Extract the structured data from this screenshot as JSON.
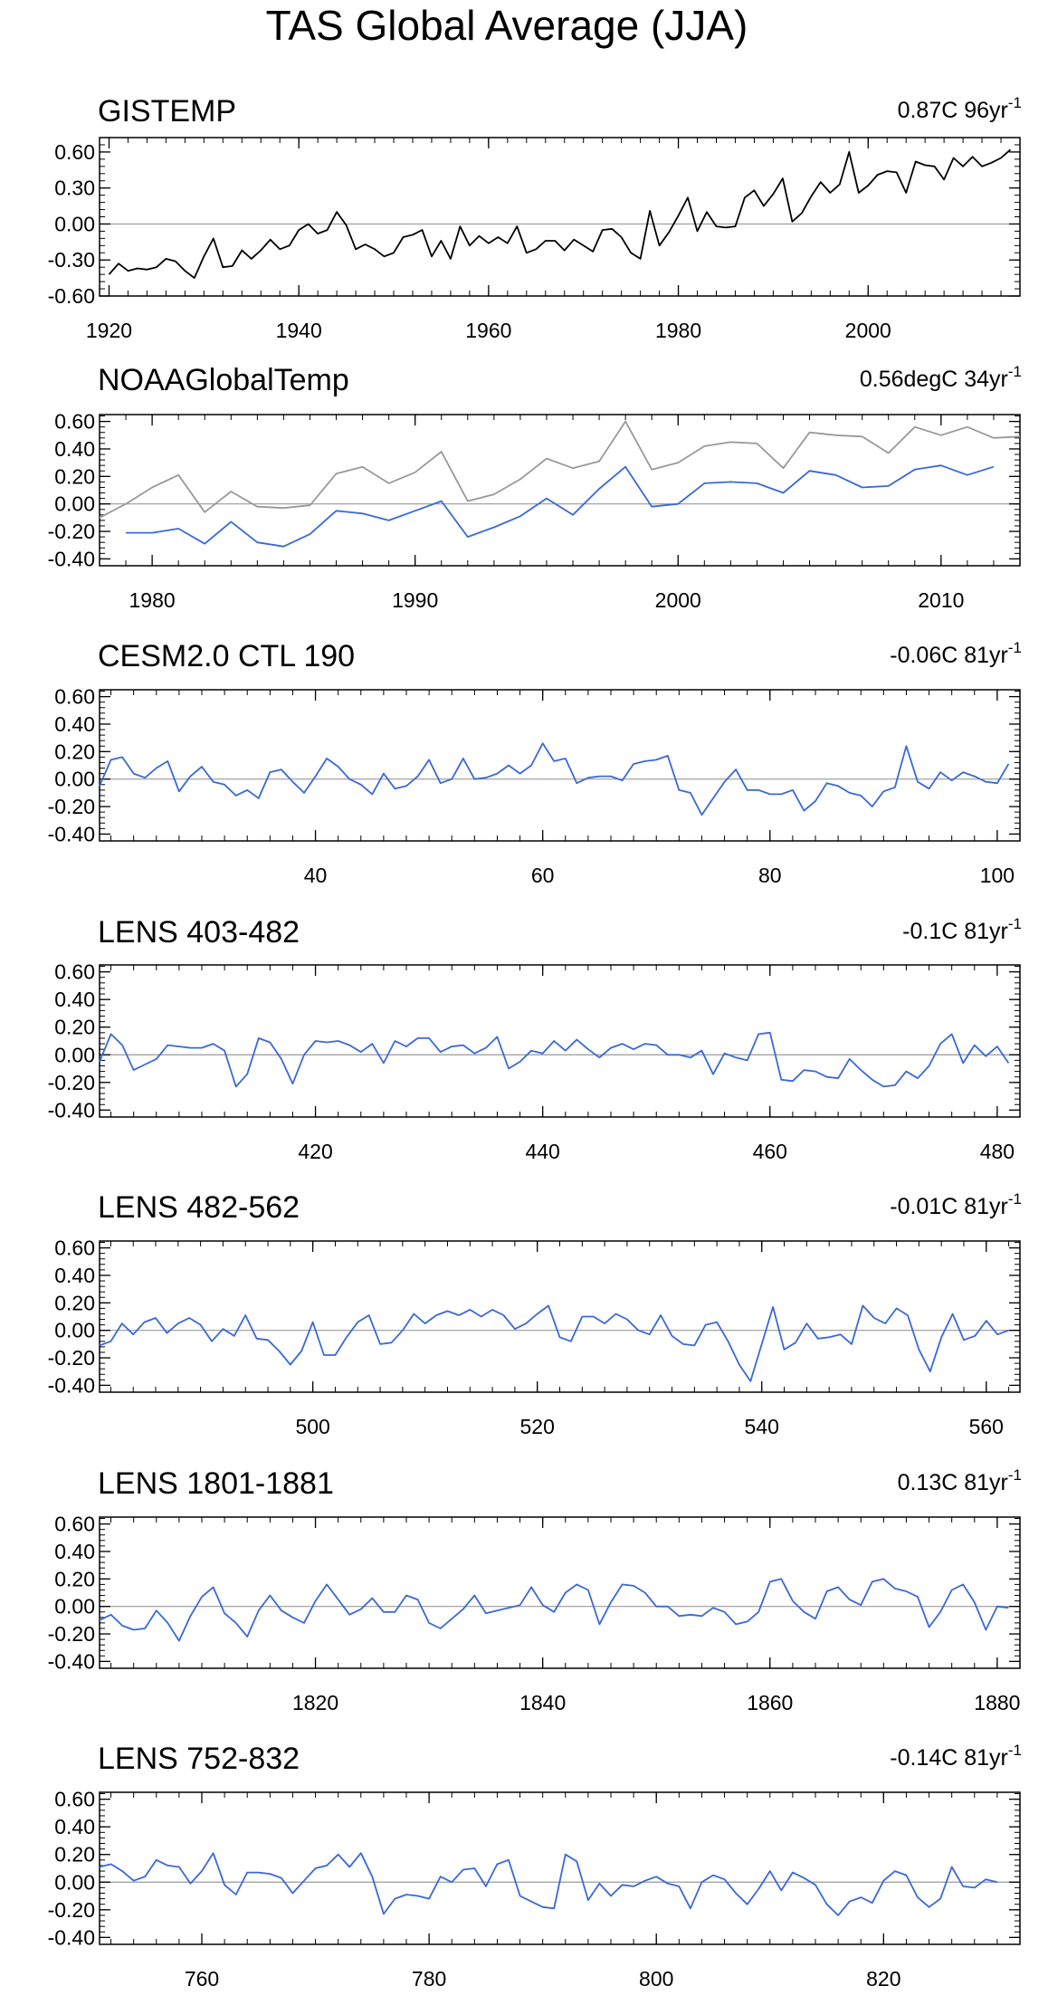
{
  "title": "TAS Global Average (JJA)",
  "chart_data": [
    {
      "type": "line",
      "panel_title": "GISTEMP",
      "trend_label": "0.87C 96yr",
      "trend_exp": "-1",
      "xlim": [
        1919,
        2016
      ],
      "ylim": [
        -0.6,
        0.72
      ],
      "yticks": [
        -0.6,
        -0.3,
        0.0,
        0.3,
        0.6
      ],
      "ytick_labels": [
        "-0.60",
        "-0.30",
        "0.00",
        "0.30",
        "0.60"
      ],
      "xticks": [
        1920,
        1940,
        1960,
        1980,
        2000
      ],
      "xtick_labels": [
        "1920",
        "1940",
        "1960",
        "1980",
        "2000"
      ],
      "zero_line": true,
      "series": [
        {
          "color": "#000000",
          "x_start": 1920,
          "values": [
            -0.42,
            -0.33,
            -0.39,
            -0.37,
            -0.38,
            -0.36,
            -0.29,
            -0.31,
            -0.39,
            -0.45,
            -0.27,
            -0.12,
            -0.36,
            -0.35,
            -0.22,
            -0.29,
            -0.22,
            -0.13,
            -0.21,
            -0.18,
            -0.05,
            0.0,
            -0.08,
            -0.05,
            0.1,
            -0.01,
            -0.21,
            -0.17,
            -0.21,
            -0.27,
            -0.24,
            -0.11,
            -0.09,
            -0.05,
            -0.27,
            -0.14,
            -0.29,
            -0.02,
            -0.18,
            -0.1,
            -0.16,
            -0.11,
            -0.16,
            -0.02,
            -0.24,
            -0.21,
            -0.14,
            -0.14,
            -0.22,
            -0.13,
            -0.18,
            -0.23,
            -0.05,
            -0.04,
            -0.11,
            -0.24,
            -0.29,
            0.11,
            -0.18,
            -0.07,
            0.07,
            0.22,
            -0.06,
            0.1,
            -0.02,
            -0.03,
            -0.02,
            0.22,
            0.28,
            0.15,
            0.25,
            0.38,
            0.02,
            0.09,
            0.23,
            0.35,
            0.26,
            0.33,
            0.6,
            0.26,
            0.32,
            0.41,
            0.44,
            0.43,
            0.26,
            0.52,
            0.49,
            0.48,
            0.37,
            0.55,
            0.48,
            0.56,
            0.48,
            0.51,
            0.55,
            0.62
          ]
        }
      ]
    },
    {
      "type": "line",
      "panel_title": "NOAAGlobalTemp",
      "trend_label": "0.56degC 34yr",
      "trend_exp": "-1",
      "xlim": [
        1978,
        2013
      ],
      "ylim": [
        -0.45,
        0.65
      ],
      "yticks": [
        -0.4,
        -0.2,
        0.0,
        0.2,
        0.4,
        0.6
      ],
      "ytick_labels": [
        "-0.40",
        "-0.20",
        "0.00",
        "0.20",
        "0.40",
        "0.60"
      ],
      "xticks": [
        1980,
        1990,
        2000,
        2010
      ],
      "xtick_labels": [
        "1980",
        "1990",
        "2000",
        "2010"
      ],
      "zero_line": true,
      "series": [
        {
          "color": "#999999",
          "x_start": 1978,
          "values": [
            -0.1,
            0.0,
            0.12,
            0.21,
            -0.06,
            0.09,
            -0.02,
            -0.03,
            -0.01,
            0.22,
            0.27,
            0.15,
            0.23,
            0.38,
            0.02,
            0.07,
            0.18,
            0.33,
            0.26,
            0.31,
            0.6,
            0.25,
            0.3,
            0.42,
            0.45,
            0.44,
            0.26,
            0.52,
            0.5,
            0.49,
            0.37,
            0.56,
            0.5,
            0.56,
            0.48,
            0.49
          ]
        },
        {
          "color": "#3a68d8",
          "x_start": 1979,
          "values": [
            -0.21,
            -0.21,
            -0.18,
            -0.29,
            -0.13,
            -0.28,
            -0.31,
            -0.22,
            -0.05,
            -0.07,
            -0.12,
            -0.05,
            0.02,
            -0.24,
            -0.17,
            -0.09,
            0.04,
            -0.08,
            0.11,
            0.27,
            -0.02,
            0.0,
            0.15,
            0.16,
            0.15,
            0.08,
            0.24,
            0.21,
            0.12,
            0.13,
            0.25,
            0.28,
            0.21,
            0.27
          ]
        }
      ]
    },
    {
      "type": "line",
      "panel_title": "CESM2.0 CTL 190",
      "trend_label": "-0.06C 81yr",
      "trend_exp": "-1",
      "xlim": [
        21,
        102
      ],
      "ylim": [
        -0.45,
        0.65
      ],
      "yticks": [
        -0.4,
        -0.2,
        0.0,
        0.2,
        0.4,
        0.6
      ],
      "ytick_labels": [
        "-0.40",
        "-0.20",
        "0.00",
        "0.20",
        "0.40",
        "0.60"
      ],
      "xticks": [
        40,
        60,
        80,
        100
      ],
      "xtick_labels": [
        "40",
        "60",
        "80",
        "100"
      ],
      "zero_line": true,
      "series": [
        {
          "color": "#3a68d8",
          "x_start": 21,
          "values": [
            -0.05,
            0.14,
            0.16,
            0.04,
            0.01,
            0.08,
            0.13,
            -0.09,
            0.02,
            0.09,
            -0.02,
            -0.04,
            -0.12,
            -0.08,
            -0.14,
            0.05,
            0.07,
            -0.02,
            -0.1,
            0.02,
            0.15,
            0.09,
            0.0,
            -0.04,
            -0.11,
            0.04,
            -0.07,
            -0.05,
            0.02,
            0.14,
            -0.03,
            0.0,
            0.15,
            0.0,
            0.01,
            0.04,
            0.1,
            0.04,
            0.1,
            0.26,
            0.13,
            0.15,
            -0.03,
            0.01,
            0.02,
            0.02,
            -0.01,
            0.11,
            0.13,
            0.14,
            0.17,
            -0.08,
            -0.1,
            -0.26,
            -0.14,
            -0.02,
            0.07,
            -0.08,
            -0.08,
            -0.11,
            -0.11,
            -0.08,
            -0.23,
            -0.16,
            -0.03,
            -0.05,
            -0.1,
            -0.12,
            -0.2,
            -0.09,
            -0.06,
            0.24,
            -0.02,
            -0.07,
            0.05,
            -0.01,
            0.05,
            0.02,
            -0.02,
            -0.03,
            0.11
          ]
        }
      ]
    },
    {
      "type": "line",
      "panel_title": "LENS 403-482",
      "trend_label": "-0.1C 81yr",
      "trend_exp": "-1",
      "xlim": [
        401,
        482
      ],
      "ylim": [
        -0.45,
        0.65
      ],
      "yticks": [
        -0.4,
        -0.2,
        0.0,
        0.2,
        0.4,
        0.6
      ],
      "ytick_labels": [
        "-0.40",
        "-0.20",
        "0.00",
        "0.20",
        "0.40",
        "0.60"
      ],
      "xticks": [
        420,
        440,
        460,
        480
      ],
      "xtick_labels": [
        "420",
        "440",
        "460",
        "480"
      ],
      "zero_line": true,
      "series": [
        {
          "color": "#3a68d8",
          "x_start": 401,
          "values": [
            -0.05,
            0.15,
            0.07,
            -0.11,
            -0.07,
            -0.03,
            0.07,
            0.06,
            0.05,
            0.05,
            0.08,
            0.03,
            -0.23,
            -0.14,
            0.12,
            0.09,
            -0.03,
            -0.21,
            0.0,
            0.1,
            0.09,
            0.1,
            0.07,
            0.02,
            0.08,
            -0.06,
            0.1,
            0.06,
            0.12,
            0.12,
            0.02,
            0.06,
            0.07,
            0.01,
            0.05,
            0.13,
            -0.1,
            -0.05,
            0.03,
            0.01,
            0.1,
            0.03,
            0.11,
            0.04,
            -0.02,
            0.05,
            0.08,
            0.04,
            0.08,
            0.07,
            0.0,
            0.0,
            -0.02,
            0.03,
            -0.14,
            0.01,
            -0.02,
            -0.04,
            0.15,
            0.16,
            -0.18,
            -0.19,
            -0.11,
            -0.12,
            -0.16,
            -0.17,
            -0.03,
            -0.11,
            -0.18,
            -0.23,
            -0.22,
            -0.12,
            -0.17,
            -0.08,
            0.08,
            0.15,
            -0.06,
            0.07,
            -0.01,
            0.06,
            -0.06
          ]
        }
      ]
    },
    {
      "type": "line",
      "panel_title": "LENS 482-562",
      "trend_label": "-0.01C 81yr",
      "trend_exp": "-1",
      "xlim": [
        481,
        563
      ],
      "ylim": [
        -0.45,
        0.65
      ],
      "yticks": [
        -0.4,
        -0.2,
        0.0,
        0.2,
        0.4,
        0.6
      ],
      "ytick_labels": [
        "-0.40",
        "-0.20",
        "0.00",
        "0.20",
        "0.40",
        "0.60"
      ],
      "xticks": [
        500,
        520,
        540,
        560
      ],
      "xtick_labels": [
        "500",
        "520",
        "540",
        "560"
      ],
      "zero_line": true,
      "series": [
        {
          "color": "#3a68d8",
          "x_start": 481,
          "values": [
            -0.11,
            -0.08,
            0.05,
            -0.03,
            0.06,
            0.09,
            -0.02,
            0.05,
            0.09,
            0.04,
            -0.08,
            0.01,
            -0.04,
            0.11,
            -0.06,
            -0.07,
            -0.15,
            -0.25,
            -0.15,
            0.06,
            -0.18,
            -0.18,
            -0.05,
            0.06,
            0.11,
            -0.1,
            -0.09,
            0.0,
            0.12,
            0.05,
            0.11,
            0.14,
            0.11,
            0.15,
            0.1,
            0.15,
            0.11,
            0.01,
            0.05,
            0.12,
            0.18,
            -0.05,
            -0.08,
            0.1,
            0.1,
            0.05,
            0.12,
            0.08,
            0.0,
            -0.03,
            0.11,
            -0.04,
            -0.1,
            -0.11,
            0.04,
            0.06,
            -0.08,
            -0.25,
            -0.37,
            -0.1,
            0.17,
            -0.14,
            -0.09,
            0.05,
            -0.06,
            -0.05,
            -0.03,
            -0.1,
            0.18,
            0.09,
            0.05,
            0.16,
            0.11,
            -0.14,
            -0.3,
            -0.05,
            0.12,
            -0.07,
            -0.04,
            0.07,
            -0.03,
            0.0
          ]
        }
      ]
    },
    {
      "type": "line",
      "panel_title": "LENS 1801-1881",
      "trend_label": "0.13C 81yr",
      "trend_exp": "-1",
      "xlim": [
        1801,
        1882
      ],
      "ylim": [
        -0.45,
        0.65
      ],
      "yticks": [
        -0.4,
        -0.2,
        0.0,
        0.2,
        0.4,
        0.6
      ],
      "ytick_labels": [
        "-0.40",
        "-0.20",
        "0.00",
        "0.20",
        "0.40",
        "0.60"
      ],
      "xticks": [
        1820,
        1840,
        1860,
        1880
      ],
      "xtick_labels": [
        "1820",
        "1840",
        "1860",
        "1880"
      ],
      "zero_line": true,
      "series": [
        {
          "color": "#3a68d8",
          "x_start": 1801,
          "values": [
            -0.1,
            -0.06,
            -0.14,
            -0.17,
            -0.16,
            -0.03,
            -0.12,
            -0.25,
            -0.07,
            0.07,
            0.14,
            -0.05,
            -0.12,
            -0.22,
            -0.03,
            0.08,
            -0.03,
            -0.08,
            -0.12,
            0.04,
            0.16,
            0.05,
            -0.06,
            -0.02,
            0.06,
            -0.04,
            -0.04,
            0.08,
            0.05,
            -0.12,
            -0.16,
            -0.09,
            -0.02,
            0.08,
            -0.05,
            -0.03,
            -0.01,
            0.01,
            0.14,
            0.01,
            -0.04,
            0.1,
            0.16,
            0.12,
            -0.13,
            0.03,
            0.16,
            0.15,
            0.1,
            0.0,
            0.0,
            -0.07,
            -0.06,
            -0.07,
            -0.01,
            -0.04,
            -0.13,
            -0.11,
            -0.04,
            0.18,
            0.2,
            0.04,
            -0.04,
            -0.09,
            0.11,
            0.14,
            0.05,
            0.01,
            0.18,
            0.2,
            0.13,
            0.11,
            0.07,
            -0.15,
            -0.04,
            0.12,
            0.16,
            0.03,
            -0.17,
            0.0,
            -0.01
          ]
        }
      ]
    },
    {
      "type": "line",
      "panel_title": "LENS 752-832",
      "trend_label": "-0.14C 81yr",
      "trend_exp": "-1",
      "xlim": [
        751,
        832
      ],
      "ylim": [
        -0.45,
        0.65
      ],
      "yticks": [
        -0.4,
        -0.2,
        0.0,
        0.2,
        0.4,
        0.6
      ],
      "ytick_labels": [
        "-0.40",
        "-0.20",
        "0.00",
        "0.20",
        "0.40",
        "0.60"
      ],
      "xticks": [
        760,
        780,
        800,
        820
      ],
      "xtick_labels": [
        "760",
        "780",
        "800",
        "820"
      ],
      "zero_line": true,
      "series": [
        {
          "color": "#3a68d8",
          "x_start": 751,
          "values": [
            0.11,
            0.13,
            0.08,
            0.01,
            0.04,
            0.16,
            0.12,
            0.11,
            -0.01,
            0.08,
            0.21,
            -0.02,
            -0.09,
            0.07,
            0.07,
            0.06,
            0.03,
            -0.08,
            0.01,
            0.1,
            0.12,
            0.2,
            0.11,
            0.21,
            0.04,
            -0.23,
            -0.12,
            -0.09,
            -0.1,
            -0.12,
            0.04,
            0.0,
            0.09,
            0.1,
            -0.03,
            0.13,
            0.16,
            -0.1,
            -0.14,
            -0.18,
            -0.19,
            0.2,
            0.15,
            -0.13,
            -0.01,
            -0.1,
            -0.02,
            -0.03,
            0.01,
            0.04,
            -0.01,
            -0.03,
            -0.19,
            0.0,
            0.05,
            0.02,
            -0.08,
            -0.16,
            -0.05,
            0.08,
            -0.06,
            0.07,
            0.03,
            -0.02,
            -0.16,
            -0.24,
            -0.14,
            -0.11,
            -0.15,
            0.01,
            0.08,
            0.05,
            -0.11,
            -0.18,
            -0.12,
            0.11,
            -0.03,
            -0.04,
            0.02,
            0.0
          ]
        }
      ]
    }
  ]
}
